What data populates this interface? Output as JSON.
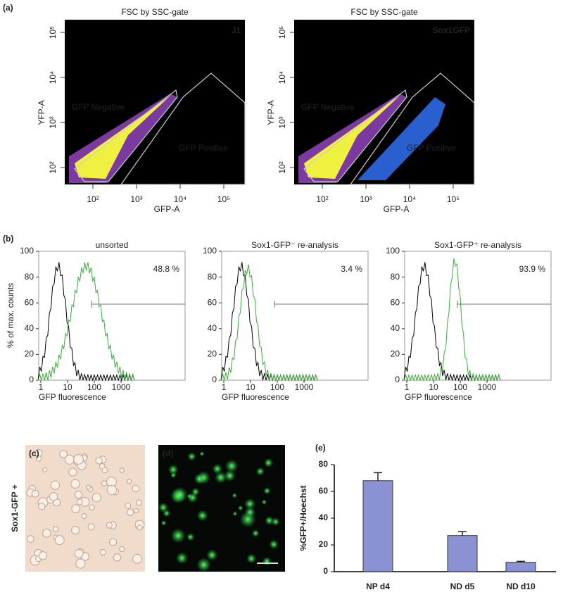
{
  "panel_a": {
    "label": "(a)",
    "x_label": "GFP-A",
    "y_label": "YFP-A",
    "xticks": [
      {
        "value": 100,
        "label": "10²"
      },
      {
        "value": 1000,
        "label": "10³"
      },
      {
        "value": 10000,
        "label": "10⁴"
      },
      {
        "value": 100000,
        "label": "10⁵"
      }
    ],
    "yticks": [
      {
        "value": 100,
        "label": "10²"
      },
      {
        "value": 1000,
        "label": "10³"
      },
      {
        "value": 10000,
        "label": "10⁴"
      },
      {
        "value": 100000,
        "label": "10⁵"
      }
    ],
    "plots": [
      {
        "title": "FSC by SSC-gate",
        "name": "J1",
        "gate_negative": "GFP Negative",
        "gate_positive": "GFP Positive"
      },
      {
        "title": "FSC by SSC-gate",
        "name": "Sox1GFP",
        "gate_negative": "GFP Negative",
        "gate_positive": "GFP Positive"
      }
    ]
  },
  "panel_b": {
    "label": "(b)",
    "y_label": "% of max. counts",
    "x_label": "GFP fluorescence",
    "yticks": [
      0,
      20,
      40,
      60,
      80,
      100
    ],
    "xticks": [
      1,
      10,
      100,
      1000
    ],
    "plots": [
      {
        "title": "unsorted",
        "percent": "48.8 %"
      },
      {
        "title": "Sox1-GFP⁻  re-analysis",
        "percent": "3.4 %"
      },
      {
        "title": "Sox1-GFP⁺  re-analysis",
        "percent": "93.9 %"
      }
    ]
  },
  "panel_c": {
    "label": "(c)",
    "row_label": "Sox1-GFP +"
  },
  "panel_d": {
    "label": "(d)"
  },
  "chart_data": {
    "type": "bar",
    "label": "(e)",
    "y_label": "%GFP+/Hoechst",
    "categories": [
      "NP d4",
      "ND d5",
      "ND d10"
    ],
    "values": [
      68,
      27,
      7
    ],
    "errors": [
      6,
      3,
      0.7
    ],
    "color": "#8b92d4",
    "ylim": [
      0,
      80
    ],
    "yticks": [
      0,
      20,
      40,
      60,
      80
    ]
  }
}
